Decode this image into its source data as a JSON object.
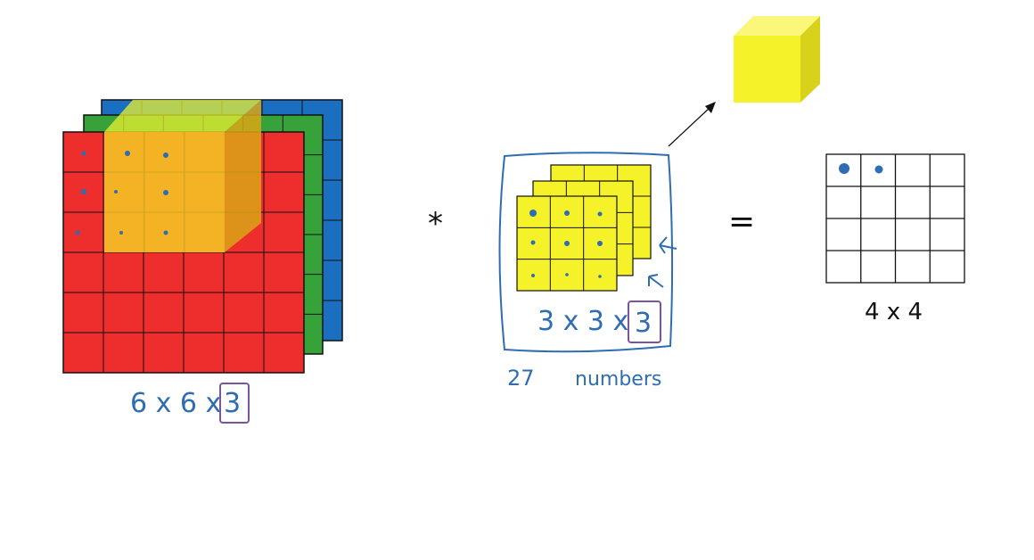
{
  "input_volume": {
    "label_prefix": "6 x 6 x",
    "label_boxed": "3",
    "colors": {
      "front": "#ee2d2d",
      "middle": "#38a23a",
      "back": "#1a6fc0",
      "receptive_field": "#f2ba25"
    }
  },
  "operator": "*",
  "filter": {
    "label_prefix": "3 x 3 x",
    "label_boxed": "3",
    "note_number": "27",
    "note_word": "numbers",
    "color": "#f6f22a"
  },
  "equals": "=",
  "output": {
    "label": "4 x 4"
  },
  "cube_icon_color": "#f6f22a"
}
